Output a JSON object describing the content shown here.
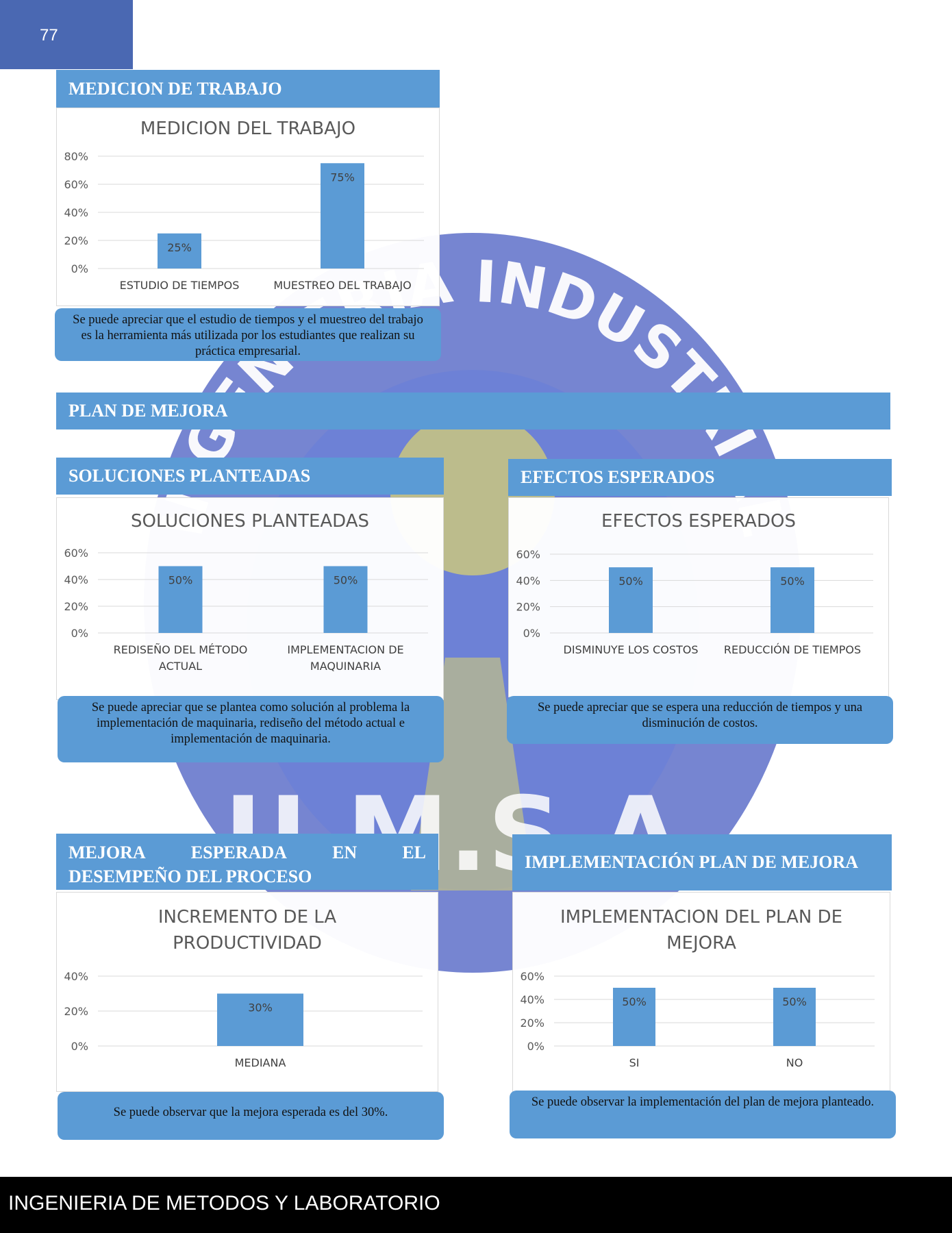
{
  "page": {
    "number": "77",
    "footer": "INGENIERIA DE METODOS Y LABORATORIO"
  },
  "watermark": {
    "top_text": "INGENIERIA INDUSTRIAL",
    "bottom_text": "U.M.S.A."
  },
  "colors": {
    "accent": "#5b9bd5",
    "tab": "#4a68b2",
    "bar": "#5b9bd5"
  },
  "sections": {
    "medicion": {
      "header": "MEDICION DE TRABAJO",
      "note": "Se puede apreciar que el estudio de tiempos y el muestreo del trabajo es la herramienta más utilizada por los estudiantes que realizan su práctica empresarial."
    },
    "plan": {
      "header": "PLAN DE MEJORA"
    },
    "soluciones": {
      "header": "SOLUCIONES PLANTEADAS",
      "note": "Se puede apreciar que se plantea como solución al problema la implementación de maquinaria, rediseño del método actual e implementación de maquinaria."
    },
    "efectos": {
      "header": "EFECTOS ESPERADOS",
      "note": "Se puede apreciar que se espera una reducción de tiempos y una disminución de costos."
    },
    "mejora": {
      "header_line1": [
        "MEJORA",
        "ESPERADA",
        "EN",
        "EL"
      ],
      "header_line2": "DESEMPEÑO DEL PROCESO",
      "note": "Se puede observar que la mejora esperada es del 30%."
    },
    "implementacion": {
      "header": "IMPLEMENTACIÓN PLAN DE MEJORA",
      "note": "Se puede observar la implementación del plan de mejora planteado."
    }
  },
  "chart_data": [
    {
      "id": "c1",
      "type": "bar",
      "title": [
        "MEDICION DEL TRABAJO"
      ],
      "categories": [
        [
          "ESTUDIO DE TIEMPOS"
        ],
        [
          "MUESTREO DEL TRABAJO"
        ]
      ],
      "values": [
        25,
        75
      ],
      "labels": [
        "25%",
        "75%"
      ],
      "ylim": [
        0,
        80
      ],
      "yticks": [
        0,
        20,
        40,
        60,
        80
      ],
      "grid": true
    },
    {
      "id": "c2",
      "type": "bar",
      "title": [
        "SOLUCIONES PLANTEADAS"
      ],
      "categories": [
        [
          "REDISEÑO DEL MÉTODO",
          "ACTUAL"
        ],
        [
          "IMPLEMENTACION DE",
          "MAQUINARIA"
        ]
      ],
      "values": [
        50,
        50
      ],
      "labels": [
        "50%",
        "50%"
      ],
      "ylim": [
        0,
        60
      ],
      "yticks": [
        0,
        20,
        40,
        60
      ],
      "grid": true
    },
    {
      "id": "c3",
      "type": "bar",
      "title": [
        "EFECTOS ESPERADOS"
      ],
      "categories": [
        [
          "DISMINUYE LOS COSTOS"
        ],
        [
          "REDUCCIÓN DE TIEMPOS"
        ]
      ],
      "values": [
        50,
        50
      ],
      "labels": [
        "50%",
        "50%"
      ],
      "ylim": [
        0,
        60
      ],
      "yticks": [
        0,
        20,
        40,
        60
      ],
      "grid": true
    },
    {
      "id": "c4",
      "type": "bar",
      "title": [
        "INCREMENTO DE LA",
        "PRODUCTIVIDAD"
      ],
      "categories": [
        [
          "MEDIANA"
        ]
      ],
      "values": [
        30
      ],
      "labels": [
        "30%"
      ],
      "ylim": [
        0,
        40
      ],
      "yticks": [
        0,
        20,
        40
      ],
      "grid": true
    },
    {
      "id": "c5",
      "type": "bar",
      "title": [
        "IMPLEMENTACION DEL PLAN DE",
        "MEJORA"
      ],
      "categories": [
        [
          "SI"
        ],
        [
          "NO"
        ]
      ],
      "values": [
        50,
        50
      ],
      "labels": [
        "50%",
        "50%"
      ],
      "ylim": [
        0,
        60
      ],
      "yticks": [
        0,
        20,
        40,
        60
      ],
      "grid": true
    }
  ]
}
